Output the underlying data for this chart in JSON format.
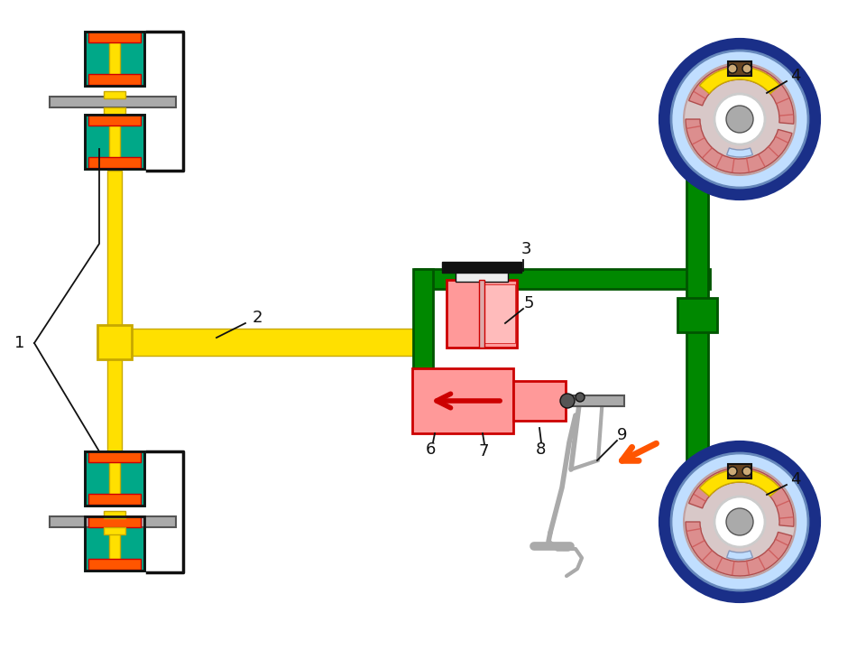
{
  "bg": "#FFFFFF",
  "yellow": "#FFE000",
  "yellow_dk": "#C8A800",
  "green": "#008800",
  "green_dk": "#005500",
  "teal": "#00A888",
  "teal_dk": "#007755",
  "pink": "#FF9999",
  "red": "#CC0000",
  "orange": "#FF5500",
  "gray": "#AAAAAA",
  "gray_dk": "#555555",
  "black": "#111111",
  "blue_dk": "#1A2F88",
  "blue_lt": "#C0DEFF",
  "drum_bg": "#D8C8C8",
  "drum_rim": "#C0A0A0",
  "lfs": 13
}
